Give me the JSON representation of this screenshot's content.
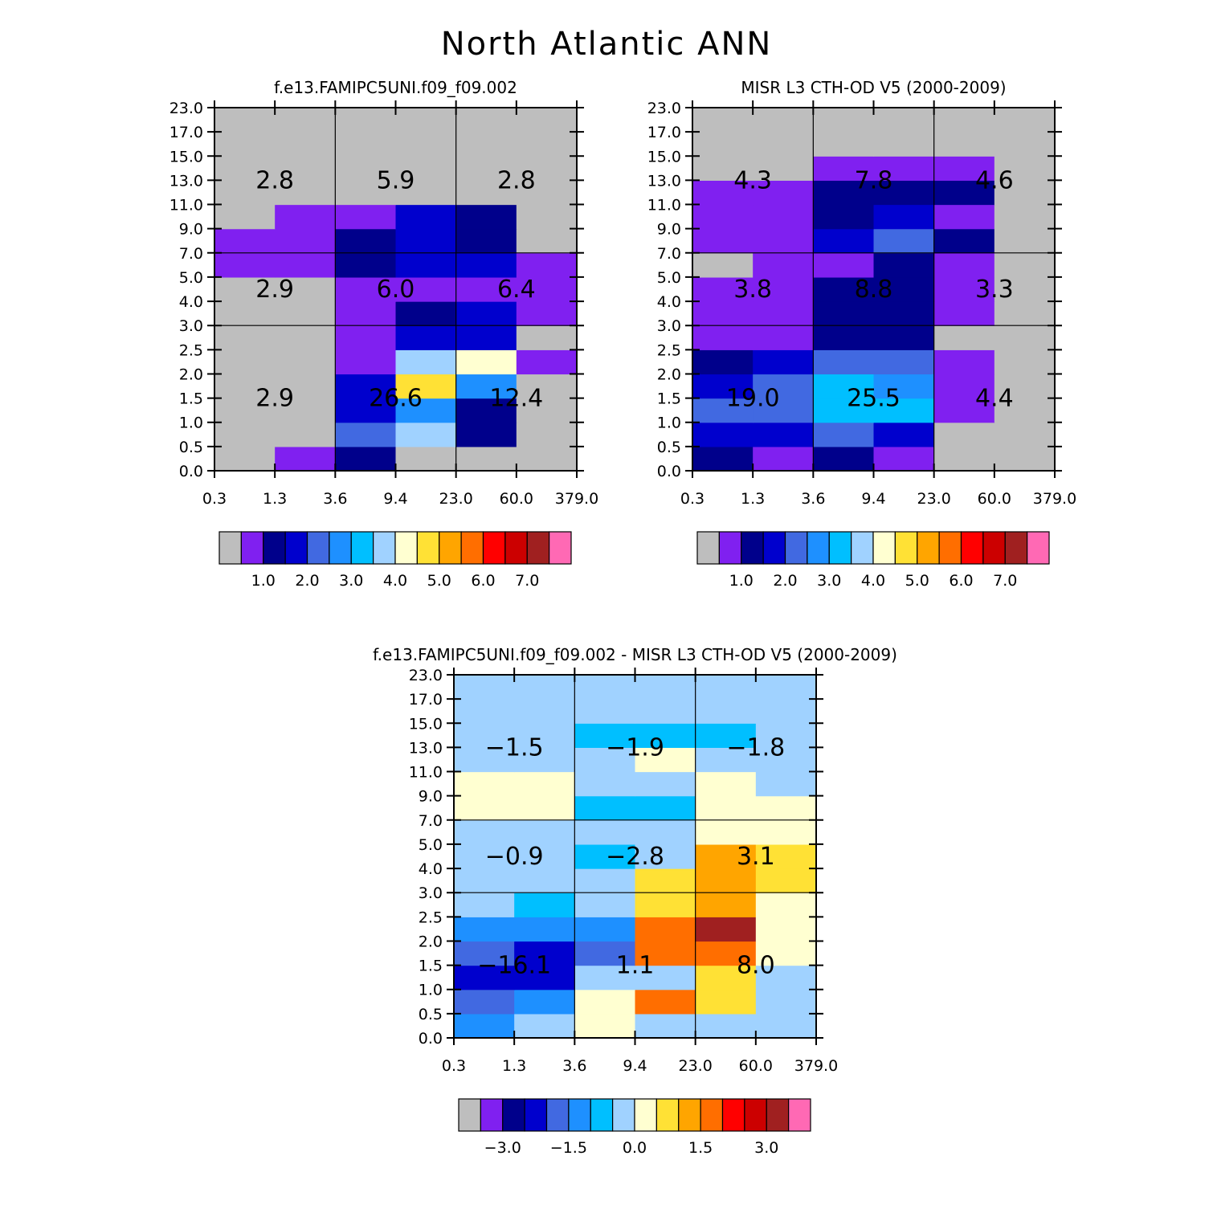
{
  "page": {
    "title": "North Atlantic ANN"
  },
  "x_ticks": [
    "0.3",
    "1.3",
    "3.6",
    "9.4",
    "23.0",
    "60.0",
    "379.0"
  ],
  "y_ticks": [
    "0.0",
    "0.5",
    "1.0",
    "1.5",
    "2.0",
    "2.5",
    "3.0",
    "4.0",
    "5.0",
    "7.0",
    "9.0",
    "11.0",
    "13.0",
    "15.0",
    "17.0",
    "23.0"
  ],
  "palette_colors": [
    "#bebebe",
    "#8020f0",
    "#00008b",
    "#0000cd",
    "#4169e1",
    "#1e90ff",
    "#00bfff",
    "#a0d2ff",
    "#ffffd1",
    "#ffe135",
    "#ffa500",
    "#ff6e00",
    "#ff0000",
    "#cc0000",
    "#a02020",
    "#ff69b4"
  ],
  "chart_data": [
    {
      "type": "heatmap",
      "title": "f.e13.FAMIPC5UNI.f09_f09.002",
      "x_bin_edges": [
        0.3,
        1.3,
        3.6,
        9.4,
        23.0,
        60.0,
        379.0
      ],
      "y_bin_edges": [
        0.0,
        0.5,
        1.0,
        1.5,
        2.0,
        2.5,
        3.0,
        4.0,
        5.0,
        7.0,
        9.0,
        11.0,
        13.0,
        15.0,
        17.0,
        23.0
      ],
      "cell_color_classes_bottom_to_top": [
        [
          0,
          1,
          2,
          0,
          0,
          0
        ],
        [
          0,
          0,
          4,
          7,
          2,
          0
        ],
        [
          0,
          0,
          3,
          5,
          2,
          0
        ],
        [
          0,
          0,
          3,
          9,
          5,
          0
        ],
        [
          0,
          0,
          1,
          7,
          8,
          1
        ],
        [
          0,
          0,
          1,
          3,
          3,
          0
        ],
        [
          0,
          0,
          1,
          2,
          3,
          1
        ],
        [
          0,
          0,
          1,
          1,
          1,
          1
        ],
        [
          1,
          1,
          2,
          3,
          3,
          1
        ],
        [
          1,
          1,
          2,
          3,
          2,
          0
        ],
        [
          0,
          1,
          1,
          3,
          2,
          0
        ],
        [
          0,
          0,
          0,
          0,
          0,
          0
        ],
        [
          0,
          0,
          0,
          0,
          0,
          0
        ],
        [
          0,
          0,
          0,
          0,
          0,
          0
        ],
        [
          0,
          0,
          0,
          0,
          0,
          0
        ]
      ],
      "box_totals": {
        "high": [
          "2.8",
          "5.9",
          "2.8"
        ],
        "mid": [
          "2.9",
          "6.0",
          "6.4"
        ],
        "low": [
          "2.9",
          "26.6",
          "12.4"
        ]
      },
      "colorbar_labels": [
        "1.0",
        "2.0",
        "3.0",
        "4.0",
        "5.0",
        "6.0",
        "7.0"
      ]
    },
    {
      "type": "heatmap",
      "title": "MISR L3 CTH-OD V5 (2000-2009)",
      "x_bin_edges": [
        0.3,
        1.3,
        3.6,
        9.4,
        23.0,
        60.0,
        379.0
      ],
      "y_bin_edges": [
        0.0,
        0.5,
        1.0,
        1.5,
        2.0,
        2.5,
        3.0,
        4.0,
        5.0,
        7.0,
        9.0,
        11.0,
        13.0,
        15.0,
        17.0,
        23.0
      ],
      "cell_color_classes_bottom_to_top": [
        [
          2,
          1,
          2,
          1,
          0,
          0
        ],
        [
          3,
          3,
          4,
          3,
          0,
          0
        ],
        [
          4,
          4,
          6,
          6,
          1,
          0
        ],
        [
          3,
          4,
          6,
          5,
          1,
          0
        ],
        [
          2,
          3,
          4,
          4,
          1,
          0
        ],
        [
          1,
          1,
          2,
          2,
          0,
          0
        ],
        [
          1,
          1,
          2,
          2,
          1,
          0
        ],
        [
          1,
          1,
          2,
          2,
          1,
          0
        ],
        [
          0,
          1,
          1,
          2,
          1,
          0
        ],
        [
          1,
          1,
          3,
          4,
          2,
          0
        ],
        [
          1,
          1,
          2,
          3,
          1,
          0
        ],
        [
          1,
          1,
          2,
          2,
          2,
          0
        ],
        [
          0,
          0,
          1,
          1,
          1,
          0
        ],
        [
          0,
          0,
          0,
          0,
          0,
          0
        ],
        [
          0,
          0,
          0,
          0,
          0,
          0
        ]
      ],
      "box_totals": {
        "high": [
          "4.3",
          "7.8",
          "4.6"
        ],
        "mid": [
          "3.8",
          "8.8",
          "3.3"
        ],
        "low": [
          "19.0",
          "25.5",
          "4.4"
        ]
      },
      "colorbar_labels": [
        "1.0",
        "2.0",
        "3.0",
        "4.0",
        "5.0",
        "6.0",
        "7.0"
      ]
    },
    {
      "type": "heatmap",
      "title": "f.e13.FAMIPC5UNI.f09_f09.002 - MISR L3 CTH-OD V5 (2000-2009)",
      "x_bin_edges": [
        0.3,
        1.3,
        3.6,
        9.4,
        23.0,
        60.0,
        379.0
      ],
      "y_bin_edges": [
        0.0,
        0.5,
        1.0,
        1.5,
        2.0,
        2.5,
        3.0,
        4.0,
        5.0,
        7.0,
        9.0,
        11.0,
        13.0,
        15.0,
        17.0,
        23.0
      ],
      "cell_color_classes_bottom_to_top": [
        [
          5,
          7,
          8,
          7,
          7,
          7
        ],
        [
          4,
          5,
          8,
          11,
          9,
          7
        ],
        [
          3,
          3,
          7,
          7,
          9,
          7
        ],
        [
          4,
          3,
          4,
          11,
          11,
          8
        ],
        [
          5,
          5,
          5,
          11,
          14,
          8
        ],
        [
          7,
          6,
          7,
          9,
          10,
          8
        ],
        [
          7,
          7,
          7,
          9,
          10,
          9
        ],
        [
          7,
          7,
          6,
          7,
          10,
          9
        ],
        [
          7,
          7,
          7,
          7,
          8,
          8
        ],
        [
          8,
          8,
          6,
          6,
          8,
          8
        ],
        [
          8,
          8,
          7,
          7,
          8,
          7
        ],
        [
          7,
          7,
          7,
          8,
          7,
          7
        ],
        [
          7,
          7,
          6,
          6,
          6,
          7
        ],
        [
          7,
          7,
          7,
          7,
          7,
          7
        ],
        [
          7,
          7,
          7,
          7,
          7,
          7
        ]
      ],
      "box_totals": {
        "high": [
          "−1.5",
          "−1.9",
          "−1.8"
        ],
        "mid": [
          "−0.9",
          "−2.8",
          "3.1"
        ],
        "low": [
          "−16.1",
          "1.1",
          "8.0"
        ]
      },
      "colorbar_labels": [
        "−3.0",
        "−1.5",
        "0.0",
        "1.5",
        "3.0"
      ]
    }
  ]
}
